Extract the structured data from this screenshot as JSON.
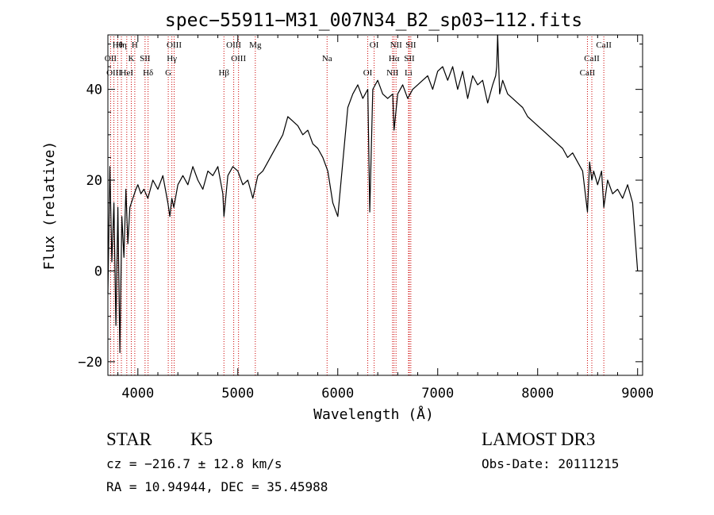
{
  "chart_data": {
    "type": "line",
    "title": "spec−55911−M31_007N34_B2_sp03−112.fits",
    "xlabel": "Wavelength (Å)",
    "ylabel": "Flux (relative)",
    "xlim": [
      3700,
      9050
    ],
    "ylim": [
      -23,
      52
    ],
    "x_ticks": [
      4000,
      5000,
      6000,
      7000,
      8000,
      9000
    ],
    "x_tick_labels": [
      "4000",
      "5000",
      "6000",
      "7000",
      "8000",
      "9000"
    ],
    "y_ticks": [
      -20,
      0,
      20,
      40
    ],
    "y_tick_labels": [
      "−20",
      "0",
      "20",
      "40"
    ],
    "series": [
      {
        "name": "spectrum",
        "x": [
          3700,
          3720,
          3740,
          3760,
          3780,
          3800,
          3820,
          3840,
          3860,
          3880,
          3900,
          3920,
          3950,
          3980,
          4000,
          4030,
          4060,
          4100,
          4150,
          4200,
          4250,
          4300,
          4320,
          4340,
          4360,
          4400,
          4450,
          4500,
          4550,
          4600,
          4650,
          4700,
          4750,
          4800,
          4850,
          4861,
          4900,
          4950,
          5000,
          5050,
          5100,
          5150,
          5200,
          5250,
          5300,
          5350,
          5400,
          5450,
          5500,
          5550,
          5600,
          5650,
          5700,
          5750,
          5800,
          5850,
          5900,
          5950,
          6000,
          6050,
          6100,
          6150,
          6200,
          6250,
          6300,
          6320,
          6350,
          6400,
          6450,
          6500,
          6550,
          6563,
          6600,
          6650,
          6700,
          6750,
          6800,
          6850,
          6900,
          6950,
          7000,
          7050,
          7100,
          7150,
          7200,
          7250,
          7300,
          7350,
          7400,
          7450,
          7500,
          7550,
          7580,
          7590,
          7600,
          7620,
          7650,
          7700,
          7750,
          7800,
          7850,
          7900,
          7950,
          8000,
          8050,
          8100,
          8150,
          8200,
          8250,
          8300,
          8350,
          8400,
          8450,
          8498,
          8520,
          8542,
          8560,
          8600,
          8640,
          8662,
          8700,
          8750,
          8800,
          8850,
          8900,
          8950,
          9000
        ],
        "values": [
          -5,
          23,
          2,
          15,
          -12,
          14,
          -18,
          12,
          3,
          18,
          6,
          14,
          16,
          18,
          19,
          17,
          18,
          16,
          20,
          18,
          21,
          15,
          12,
          16,
          14,
          19,
          21,
          19,
          23,
          20,
          18,
          22,
          21,
          23,
          17,
          12,
          21,
          23,
          22,
          19,
          20,
          16,
          21,
          22,
          24,
          26,
          28,
          30,
          34,
          33,
          32,
          30,
          31,
          28,
          27,
          25,
          22,
          15,
          12,
          24,
          36,
          39,
          41,
          38,
          40,
          13,
          40,
          42,
          39,
          38,
          39,
          31,
          39,
          41,
          38,
          40,
          41,
          42,
          43,
          40,
          44,
          45,
          42,
          45,
          40,
          44,
          38,
          43,
          41,
          42,
          37,
          41,
          43,
          45,
          52,
          39,
          42,
          39,
          38,
          37,
          36,
          34,
          33,
          32,
          31,
          30,
          29,
          28,
          27,
          25,
          26,
          24,
          22,
          13,
          24,
          20,
          22,
          19,
          22,
          14,
          20,
          17,
          18,
          16,
          19,
          15,
          0
        ]
      }
    ],
    "line_markers": [
      {
        "label": "Hθ",
        "x": 3798
      },
      {
        "label": "OII",
        "x": 3727
      },
      {
        "label": "OIII",
        "x": 3760
      },
      {
        "label": "Hη",
        "x": 3835
      },
      {
        "label": "K",
        "x": 3934
      },
      {
        "label": "HeI",
        "x": 3889
      },
      {
        "label": "H",
        "x": 3969
      },
      {
        "label": "SII",
        "x": 4072
      },
      {
        "label": "Hδ",
        "x": 4102
      },
      {
        "label": "OIII",
        "x": 4363
      },
      {
        "label": "Hγ",
        "x": 4340
      },
      {
        "label": "G",
        "x": 4304
      },
      {
        "label": "OIII",
        "x": 4959
      },
      {
        "label": "OIII",
        "x": 5007
      },
      {
        "label": "Hβ",
        "x": 4861
      },
      {
        "label": "Mg",
        "x": 5175
      },
      {
        "label": "Na",
        "x": 5893
      },
      {
        "label": "OI",
        "x": 6300
      },
      {
        "label": "OI",
        "x": 6364
      },
      {
        "label": "Hα",
        "x": 6563
      },
      {
        "label": "NII",
        "x": 6548
      },
      {
        "label": "NII",
        "x": 6583
      },
      {
        "label": "SII",
        "x": 6716
      },
      {
        "label": "Li",
        "x": 6708
      },
      {
        "label": "SII",
        "x": 6731
      },
      {
        "label": "CaII",
        "x": 8542
      },
      {
        "label": "CaII",
        "x": 8498
      },
      {
        "label": "CaII",
        "x": 8662
      }
    ]
  },
  "info": {
    "class_label": "STAR",
    "subclass_label": "K5",
    "survey": "LAMOST DR3",
    "cz": "cz = −216.7 ± 12.8 km/s",
    "obs_date": "Obs-Date: 20111215",
    "coords": "RA =  10.94944, DEC =  35.45988"
  },
  "colors": {
    "spectrum": "#000000",
    "marker": "#cc0000",
    "axis": "#000000"
  }
}
